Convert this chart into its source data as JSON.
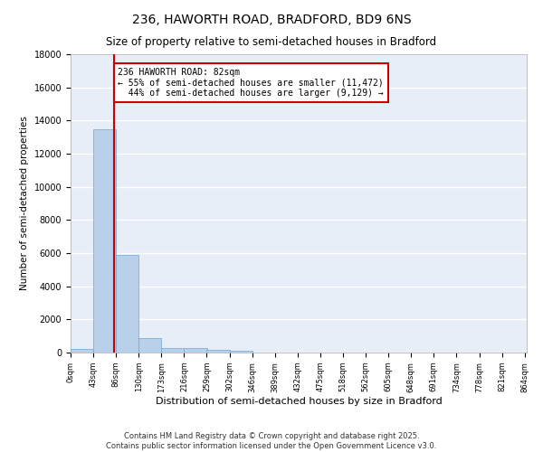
{
  "title": "236, HAWORTH ROAD, BRADFORD, BD9 6NS",
  "subtitle": "Size of property relative to semi-detached houses in Bradford",
  "xlabel": "Distribution of semi-detached houses by size in Bradford",
  "ylabel": "Number of semi-detached properties",
  "property_size": 82,
  "pct_smaller": 55,
  "pct_larger": 44,
  "count_smaller": 11472,
  "count_larger": 9129,
  "bin_width": 43,
  "bin_starts": [
    0,
    43,
    86,
    129,
    172,
    215,
    258,
    301,
    344,
    387,
    430,
    473,
    516,
    559,
    602,
    645,
    688,
    731,
    774,
    817
  ],
  "bar_heights": [
    200,
    13500,
    5900,
    900,
    300,
    250,
    150,
    100,
    0,
    0,
    0,
    0,
    0,
    0,
    0,
    0,
    0,
    0,
    0,
    0
  ],
  "bar_color": "#b8d0ea",
  "bar_edge_color": "#6aaad4",
  "vline_color": "#cc0000",
  "annotation_box_color": "#cc0000",
  "background_color": "#e8eef8",
  "grid_color": "#ffffff",
  "ylim": [
    0,
    18000
  ],
  "xlim": [
    0,
    864
  ],
  "tick_labels": [
    "0sqm",
    "43sqm",
    "86sqm",
    "130sqm",
    "173sqm",
    "216sqm",
    "259sqm",
    "302sqm",
    "346sqm",
    "389sqm",
    "432sqm",
    "475sqm",
    "518sqm",
    "562sqm",
    "605sqm",
    "648sqm",
    "691sqm",
    "734sqm",
    "778sqm",
    "821sqm",
    "864sqm"
  ],
  "footer_line1": "Contains HM Land Registry data © Crown copyright and database right 2025.",
  "footer_line2": "Contains public sector information licensed under the Open Government Licence v3.0."
}
